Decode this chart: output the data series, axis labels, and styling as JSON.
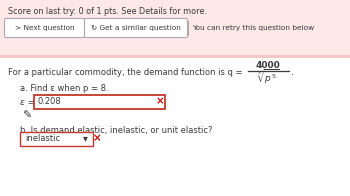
{
  "bg_color": "#ffffff",
  "pink_bg": "#fde8e8",
  "pink_stripe": "#f5c6c6",
  "score_text": "Score on last try: 0 of 1 pts. See Details for more.",
  "next_btn": "> Next question",
  "similar_btn": "↻ Get a similar question",
  "retry_text": "You can retry this question below",
  "demand_pre": "For a particular commodity, the demand function is q =",
  "fraction_num": "4000",
  "part_a": "a. Find ε when p = 8.",
  "epsilon_label": "ε =",
  "epsilon_value": "0.208",
  "pencil_icon": "✎",
  "part_b": "b. Is demand elastic, inelastic, or unit elastic?",
  "dropdown_value": "inelastic",
  "dark_text": "#3a3a3a",
  "input_border": "#c0392b",
  "input_bg": "#ffffff"
}
